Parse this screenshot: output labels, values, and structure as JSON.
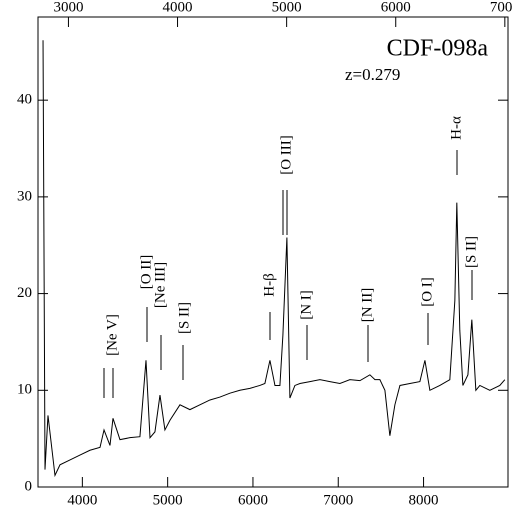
{
  "chart_data": {
    "type": "line",
    "title": "CDF-098a",
    "subtitle": "z=0.279",
    "x": [
      3539,
      3562,
      3597,
      3679,
      3738,
      3855,
      3972,
      4089,
      4207,
      4254,
      4324,
      4359,
      4441,
      4558,
      4675,
      4746,
      4793,
      4851,
      4910,
      4968,
      5027,
      5144,
      5261,
      5378,
      5496,
      5613,
      5730,
      5847,
      5964,
      6081,
      6140,
      6199,
      6258,
      6316,
      6351,
      6398,
      6433,
      6492,
      6551,
      6668,
      6785,
      6902,
      7019,
      7136,
      7254,
      7371,
      7430,
      7488,
      7547,
      7605,
      7664,
      7723,
      7840,
      7957,
      8016,
      8074,
      8191,
      8308,
      8367,
      8390,
      8425,
      8461,
      8520,
      8566,
      8613,
      8660,
      8777,
      8894,
      8953
    ],
    "series": [
      {
        "color": "#000000",
        "values": [
          46.2,
          1.8,
          7.4,
          1.2,
          2.3,
          2.8,
          3.3,
          3.8,
          4.1,
          5.9,
          4.3,
          7.1,
          4.9,
          5.1,
          5.2,
          13.1,
          5.1,
          5.7,
          9.5,
          5.9,
          6.9,
          8.5,
          8.0,
          8.5,
          9.0,
          9.3,
          9.7,
          10.0,
          10.2,
          10.5,
          10.7,
          13.1,
          10.5,
          10.5,
          15.7,
          25.8,
          9.2,
          10.5,
          10.7,
          10.9,
          11.1,
          10.9,
          10.7,
          11.1,
          11.0,
          11.6,
          11.1,
          11.1,
          10.0,
          5.3,
          8.5,
          10.5,
          10.7,
          10.9,
          13.1,
          10.0,
          10.5,
          11.1,
          19.3,
          29.4,
          16.2,
          10.5,
          11.6,
          17.3,
          10.0,
          10.5,
          10.0,
          10.5,
          11.1
        ]
      }
    ],
    "xlim": [
      3480,
      8990
    ],
    "xticks": [
      4000,
      5000,
      6000,
      7000,
      8000
    ],
    "x2lim": [
      2721,
      7029
    ],
    "x2ticks": [
      3000,
      4000,
      5000,
      6000,
      7000
    ],
    "ylim": [
      0,
      48.6
    ],
    "yticks": [
      0,
      10,
      20,
      30,
      40
    ],
    "annotations": [
      "[Ne V]",
      "[O II]",
      "[Ne III]",
      "[S II]",
      "H-β",
      "[O III]",
      "[N I]",
      "[N II]",
      "[O I]",
      "H-α",
      "[S II]"
    ]
  }
}
